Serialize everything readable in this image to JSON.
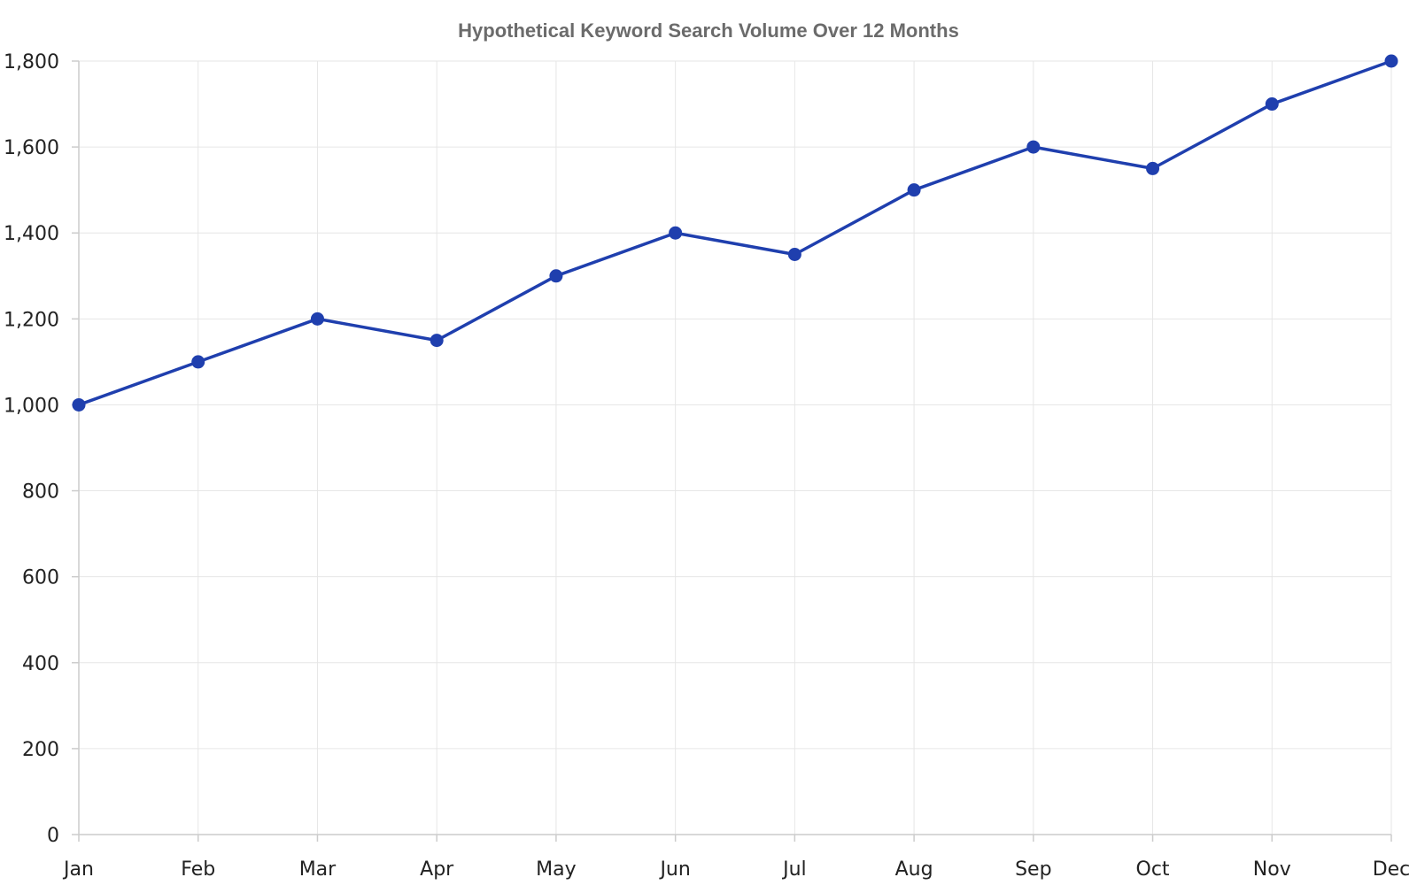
{
  "chart_data": {
    "type": "line",
    "title": "Hypothetical Keyword Search Volume Over 12 Months",
    "xlabel": "",
    "ylabel": "",
    "categories": [
      "Jan",
      "Feb",
      "Mar",
      "Apr",
      "May",
      "Jun",
      "Jul",
      "Aug",
      "Sep",
      "Oct",
      "Nov",
      "Dec"
    ],
    "series": [
      {
        "values": [
          1000,
          1100,
          1200,
          1150,
          1300,
          1400,
          1350,
          1500,
          1600,
          1550,
          1700,
          1800
        ],
        "color": "#1f3fae"
      }
    ],
    "ylim": [
      0,
      1800
    ],
    "yticks": [
      0,
      200,
      400,
      600,
      800,
      1000,
      1200,
      1400,
      1600,
      1800
    ],
    "ytick_labels": [
      "0",
      "200",
      "400",
      "600",
      "800",
      "1,000",
      "1,200",
      "1,400",
      "1,600",
      "1,800"
    ],
    "grid": true,
    "legend": "none"
  }
}
